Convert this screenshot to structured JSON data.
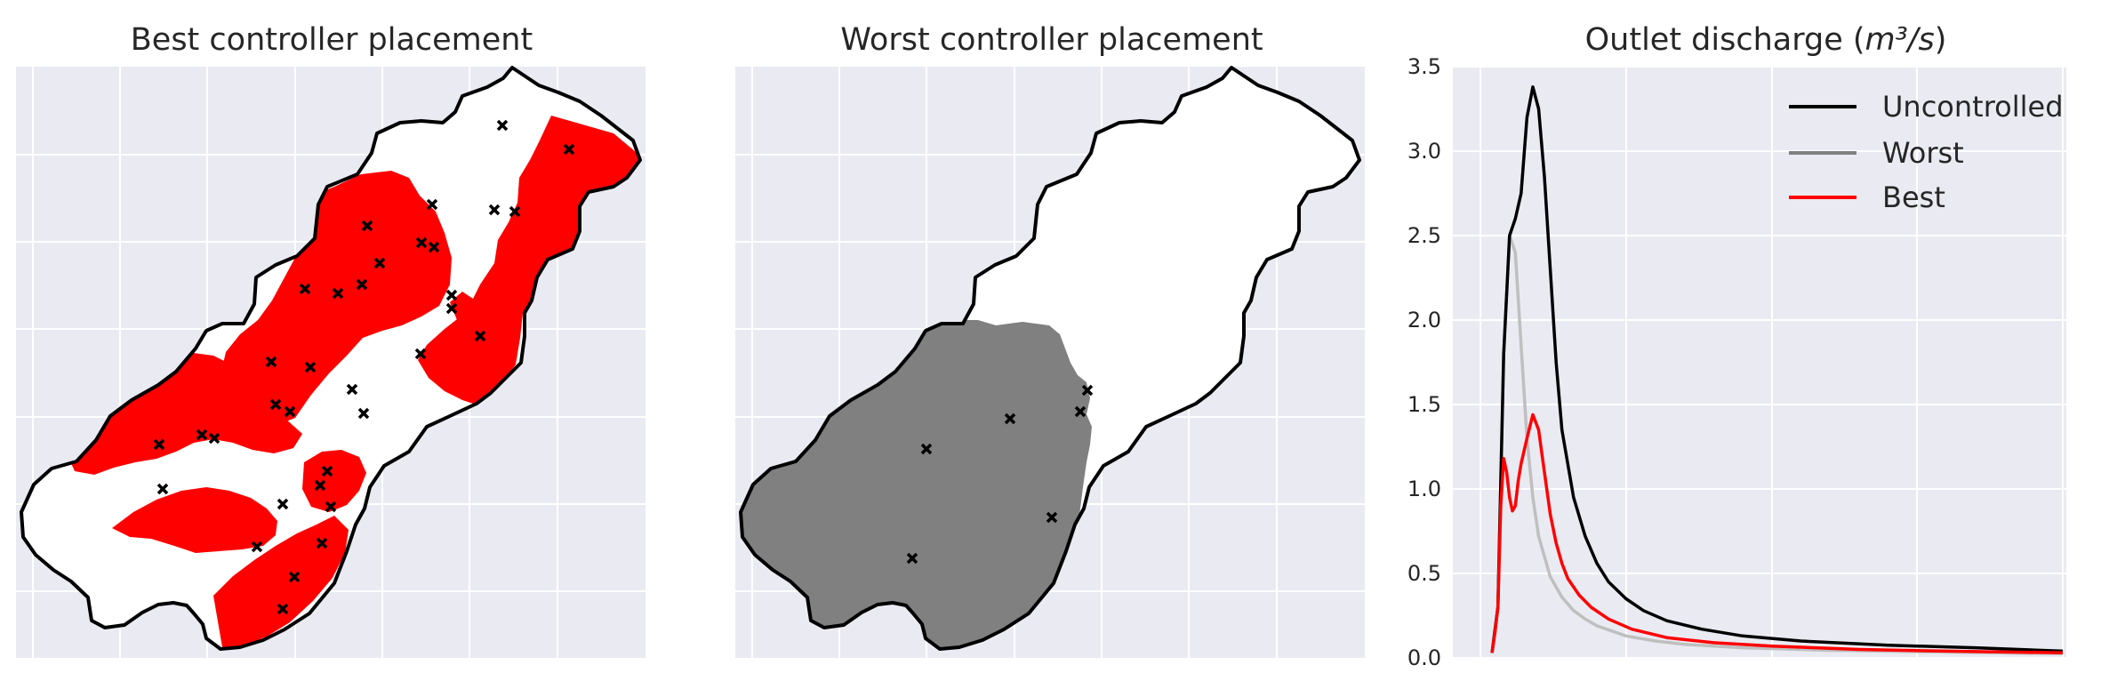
{
  "colors": {
    "panel_bg": "#eaeaf2",
    "grid": "#ffffff",
    "best_region": "#ff0000",
    "worst_region": "#808080",
    "boundary": "#000000",
    "controller_marker": "#000000",
    "uncontrolled": "#000000",
    "worst": "#bfbfbf",
    "best": "#ff0000",
    "legend_worst": "#808080"
  },
  "icons": {
    "controller_marker": "x-marker-icon"
  },
  "chart_data": [
    {
      "type": "map",
      "title": "Best controller placement",
      "controllers_shown": 30,
      "grid": true
    },
    {
      "type": "map",
      "title": "Worst controller placement",
      "controllers_shown": 7,
      "grid": true
    },
    {
      "type": "line",
      "title_prefix": "Outlet discharge (",
      "title_math": "m³/s",
      "title_suffix": ")",
      "ylim": [
        0,
        3.5
      ],
      "yticks": [
        "0.0",
        "0.5",
        "1.0",
        "1.5",
        "2.0",
        "2.5",
        "3.0",
        "3.5"
      ],
      "xlim": [
        0,
        1
      ],
      "grid": true,
      "legend_position": "top-right",
      "series": [
        {
          "name": "Uncontrolled",
          "color": "#000000",
          "x": [
            0.02,
            0.03,
            0.04,
            0.05,
            0.06,
            0.07,
            0.08,
            0.09,
            0.1,
            0.11,
            0.12,
            0.13,
            0.14,
            0.16,
            0.18,
            0.2,
            0.22,
            0.25,
            0.28,
            0.32,
            0.38,
            0.45,
            0.55,
            0.7,
            0.85,
            1.0
          ],
          "y": [
            0.03,
            0.3,
            1.8,
            2.5,
            2.6,
            2.75,
            3.2,
            3.38,
            3.25,
            2.85,
            2.3,
            1.75,
            1.35,
            0.95,
            0.72,
            0.56,
            0.45,
            0.35,
            0.28,
            0.22,
            0.17,
            0.13,
            0.1,
            0.075,
            0.06,
            0.04
          ]
        },
        {
          "name": "Worst",
          "color": "#bfbfbf",
          "x": [
            0.02,
            0.03,
            0.04,
            0.05,
            0.06,
            0.07,
            0.08,
            0.09,
            0.1,
            0.12,
            0.14,
            0.16,
            0.18,
            0.2,
            0.25,
            0.3,
            0.35,
            0.45,
            0.6,
            0.8,
            1.0
          ],
          "y": [
            0.03,
            0.3,
            1.8,
            2.5,
            2.4,
            1.85,
            1.3,
            0.95,
            0.72,
            0.48,
            0.36,
            0.28,
            0.23,
            0.19,
            0.13,
            0.1,
            0.08,
            0.06,
            0.045,
            0.035,
            0.025
          ]
        },
        {
          "name": "Best",
          "color": "#ff0000",
          "x": [
            0.02,
            0.025,
            0.03,
            0.035,
            0.04,
            0.045,
            0.05,
            0.055,
            0.06,
            0.065,
            0.07,
            0.08,
            0.09,
            0.1,
            0.11,
            0.12,
            0.13,
            0.14,
            0.15,
            0.17,
            0.19,
            0.22,
            0.26,
            0.32,
            0.4,
            0.5,
            0.65,
            0.8,
            1.0
          ],
          "y": [
            0.03,
            0.15,
            0.3,
            0.9,
            1.18,
            1.1,
            0.95,
            0.87,
            0.9,
            1.05,
            1.15,
            1.3,
            1.44,
            1.35,
            1.1,
            0.85,
            0.68,
            0.56,
            0.47,
            0.37,
            0.3,
            0.23,
            0.17,
            0.12,
            0.09,
            0.07,
            0.05,
            0.04,
            0.03
          ]
        }
      ]
    }
  ]
}
